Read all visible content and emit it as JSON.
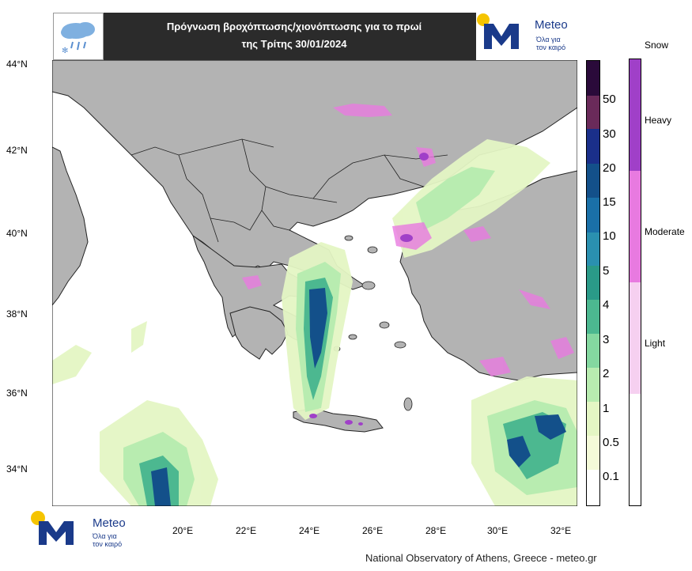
{
  "header": {
    "title_line1": "Πρόγνωση βροχόπτωσης/χιονόπτωσης για το πρωί",
    "title_line2": "της Τρίτης 30/01/2024",
    "weather_icon": "rain-snow-cloud-icon"
  },
  "logo": {
    "name": "Meteo",
    "tagline_line1": "Όλα για",
    "tagline_line2": "τον καιρό",
    "icon": "meteo-m-logo"
  },
  "map": {
    "lat_labels": [
      "44°N",
      "42°N",
      "40°N",
      "38°N",
      "36°N",
      "34°N"
    ],
    "lon_labels": [
      "20°E",
      "22°E",
      "24°E",
      "26°E",
      "28°E",
      "30°E",
      "32°E"
    ],
    "colors": {
      "land": "#b3b3b3",
      "sea": "#ffffff",
      "border": "#222222"
    }
  },
  "precip_legend": {
    "labels": [
      "50",
      "30",
      "20",
      "15",
      "10",
      "5",
      "4",
      "3",
      "2",
      "1",
      "0.5",
      "0.1"
    ],
    "colors": [
      "#2a0a3a",
      "#6a2a5a",
      "#1a2f8a",
      "#13508a",
      "#1a70a8",
      "#2a90b0",
      "#2a9a88",
      "#4cb890",
      "#84d8a0",
      "#b8ecb0",
      "#e4f6c4",
      "#f4fad8",
      "#ffffff"
    ]
  },
  "snow_legend": {
    "title": "Snow",
    "labels": [
      "Heavy",
      "Moderate",
      "Light"
    ],
    "colors": [
      "#a040c8",
      "#e87ae0",
      "#f6d0f0",
      "#ffffff"
    ]
  },
  "footer": {
    "credit": "National Observatory of Athens, Greece - meteo.gr"
  }
}
